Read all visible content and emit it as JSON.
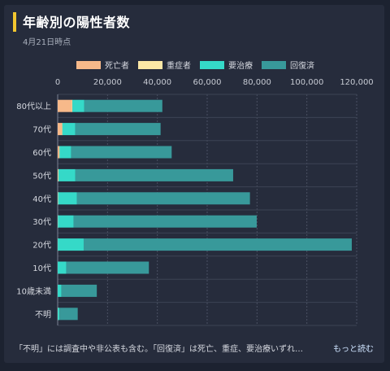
{
  "header": {
    "title": "年齢別の陽性者数",
    "subtitle": "4月21日時点"
  },
  "footer": {
    "note": "「不明」には調査中や非公表も含む。「回復済」は死亡、重症、要治療いずれ…",
    "more_label": "もっと読む"
  },
  "chart_data": {
    "type": "bar",
    "orientation": "horizontal",
    "stacked": true,
    "categories": [
      "80代以上",
      "70代",
      "60代",
      "50代",
      "40代",
      "30代",
      "20代",
      "10代",
      "10歳未満",
      "不明"
    ],
    "series": [
      {
        "name": "死亡者",
        "color": "#f7b98a",
        "values": [
          5700,
          1700,
          600,
          200,
          100,
          50,
          20,
          0,
          0,
          30
        ]
      },
      {
        "name": "重症者",
        "color": "#fbe7a6",
        "values": [
          200,
          200,
          150,
          120,
          60,
          30,
          10,
          5,
          0,
          10
        ]
      },
      {
        "name": "要治療",
        "color": "#35d9c8",
        "values": [
          4800,
          5200,
          4700,
          6800,
          7500,
          6300,
          10400,
          3500,
          1500,
          700
        ]
      },
      {
        "name": "回復済",
        "color": "#38999a",
        "values": [
          31300,
          34200,
          40300,
          63300,
          69500,
          73500,
          107600,
          33100,
          14200,
          7300
        ]
      }
    ],
    "xlim": [
      0,
      120000
    ],
    "xticks": [
      "0",
      "20,000",
      "40,000",
      "60,000",
      "80,000",
      "100,000",
      "120,000"
    ],
    "grid": true,
    "legend_position": "top",
    "xlabel": "",
    "ylabel": ""
  }
}
